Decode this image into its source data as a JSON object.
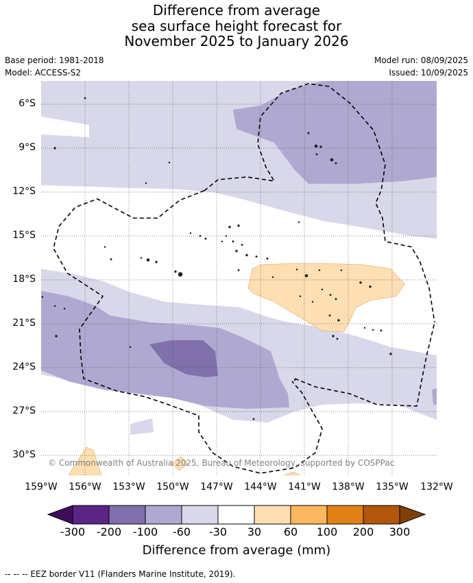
{
  "title": {
    "line1": "Difference from average",
    "line2": "sea surface height forecast for",
    "line3": "November 2025 to January 2026"
  },
  "meta": {
    "base_period": "Base period: 1981-2018",
    "model": "Model: ACCESS-S2",
    "model_run": "Model run: 08/09/2025",
    "issued": "Issued: 10/09/2025"
  },
  "map": {
    "lat_labels": [
      "6°S",
      "9°S",
      "12°S",
      "15°S",
      "18°S",
      "21°S",
      "24°S",
      "27°S",
      "30°S"
    ],
    "lon_labels": [
      "159°W",
      "156°W",
      "153°W",
      "150°W",
      "147°W",
      "144°W",
      "141°W",
      "138°W",
      "135°W",
      "132°W"
    ],
    "lat_range": [
      -31.5,
      -4.7
    ],
    "lon_range": [
      -159.0,
      -132.0
    ],
    "grid": true,
    "copyright": "© Commonwealth of Australia 2025, Bureau of Meteorology, supported by COSPPac",
    "colors": {
      "lt_-200": "#5a2585",
      "lt_-100": "#8070ab",
      "lt_-60": "#afa9d1",
      "lt_-30": "#d8d8ea",
      "neutral": "#ffffff",
      "gt_30": "#fddfb3",
      "gt_60": "#fbb75f",
      "gt_100": "#e27f17",
      "gt_200": "#b0570b",
      "extend_low": "#3f0c5c",
      "extend_high": "#80400a"
    }
  },
  "colorbar": {
    "title": "Difference from average (mm)",
    "ticks": [
      "-300",
      "-200",
      "-100",
      "-60",
      "-30",
      "30",
      "60",
      "100",
      "200",
      "300"
    ],
    "colors": [
      "#5a2585",
      "#8070ab",
      "#afa9d1",
      "#d8d8ea",
      "#ffffff",
      "#fddfb3",
      "#fbb75f",
      "#e27f17",
      "#b0570b"
    ]
  },
  "footer": "--  --  -- EEZ border V11 (Flanders Marine Institute, 2019)."
}
